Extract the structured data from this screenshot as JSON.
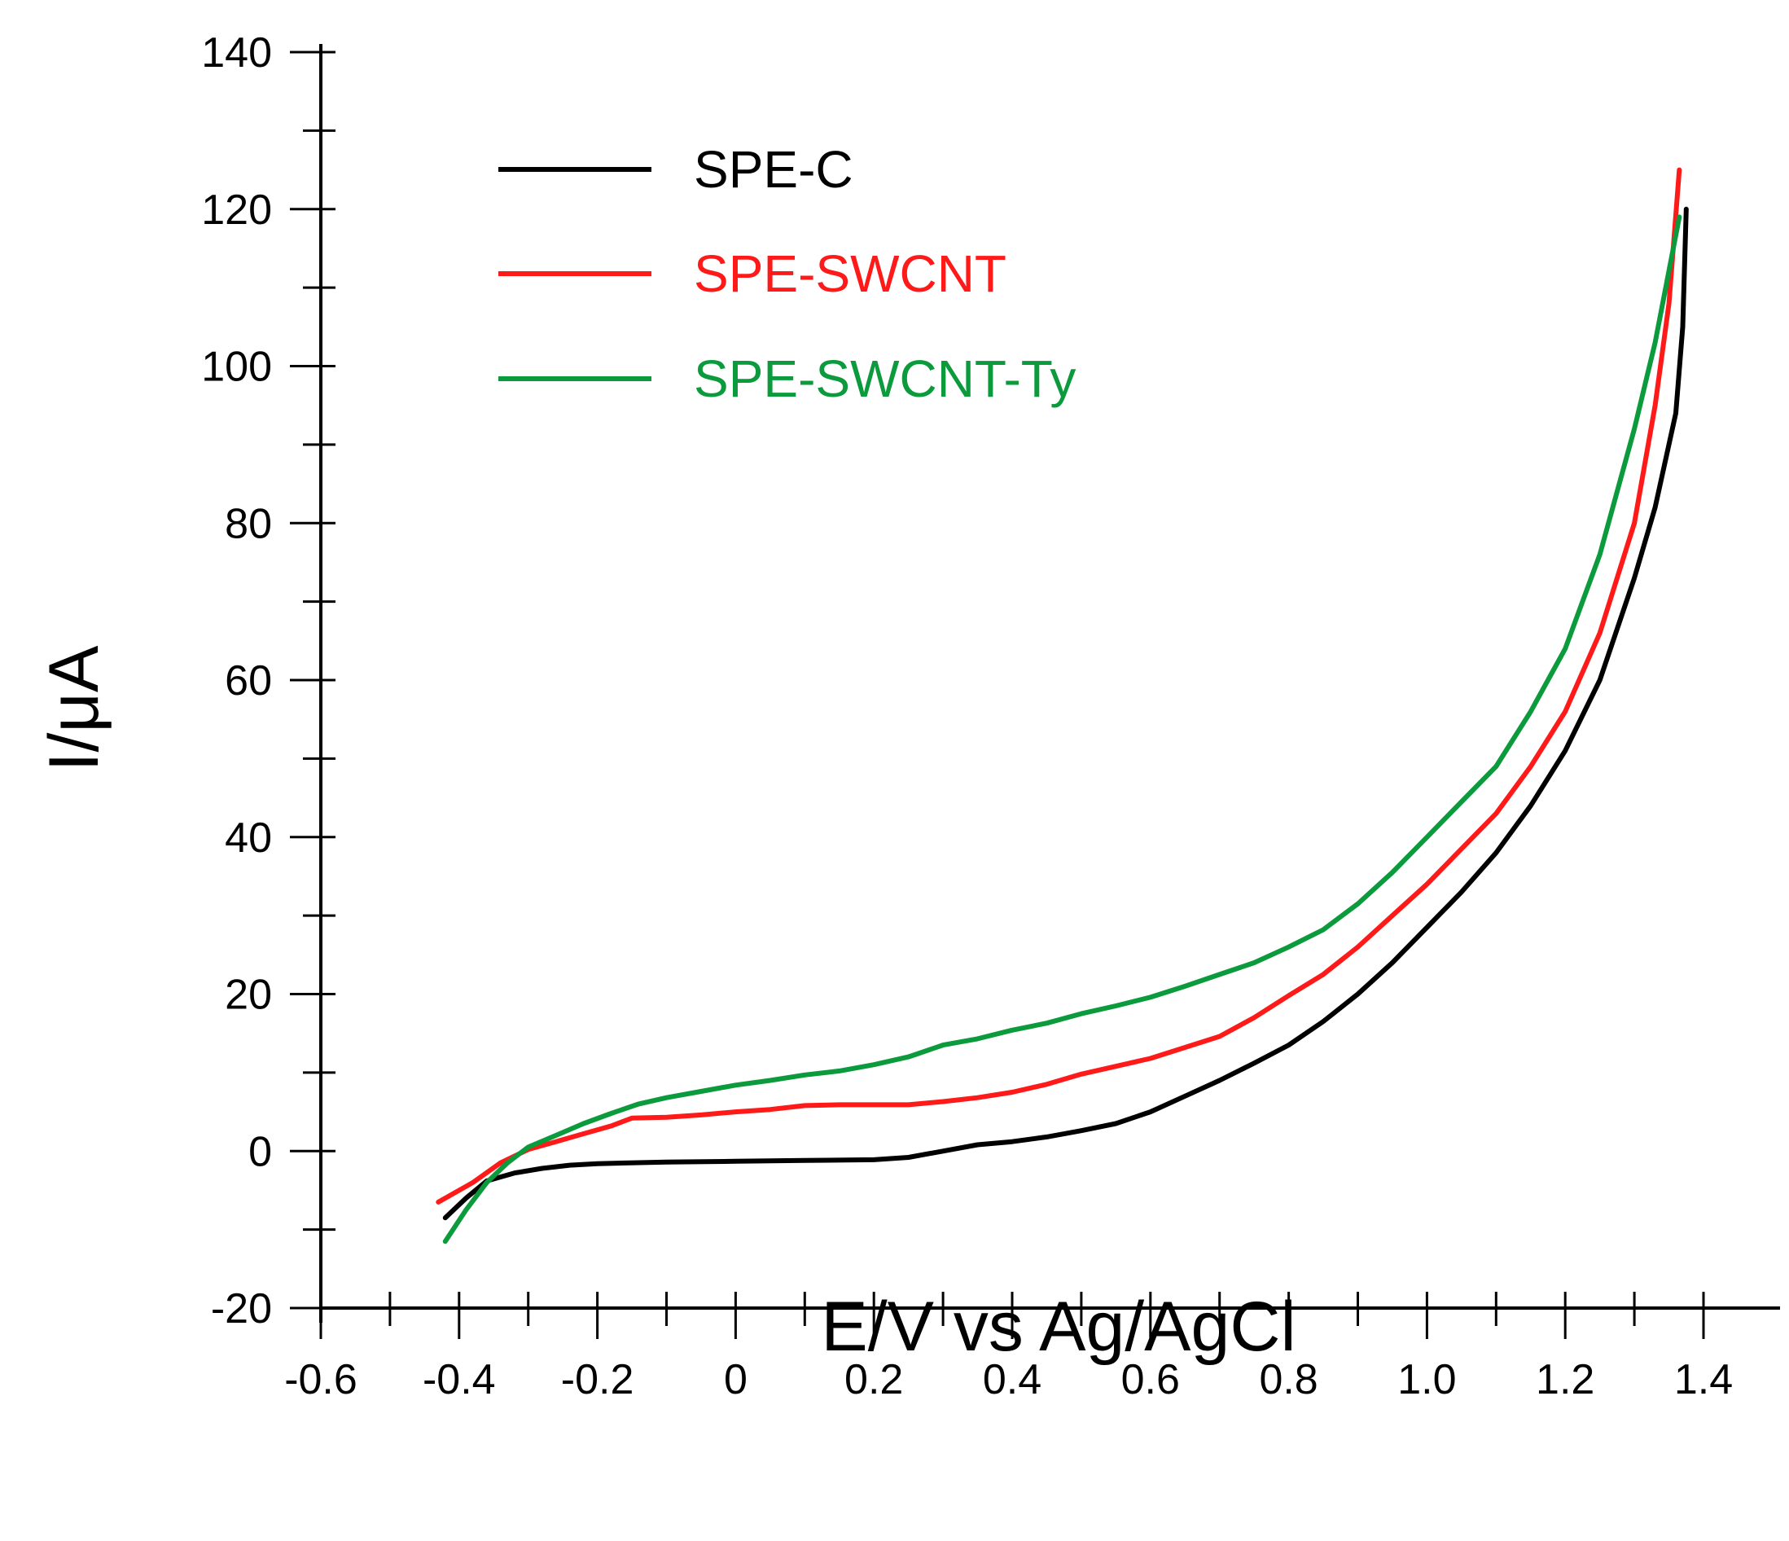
{
  "chart_data": {
    "type": "line",
    "title": "",
    "xlabel": "E/V vs Ag/AgCl",
    "ylabel": "I/μA",
    "xlim": [
      -0.6,
      1.4
    ],
    "ylim": [
      -20,
      140
    ],
    "x_ticks": [
      -0.6,
      -0.4,
      -0.2,
      0,
      0.2,
      0.4,
      0.6,
      0.8,
      1.0,
      1.2,
      1.4
    ],
    "x_tick_labels": [
      "-0.6",
      "-0.4",
      "-0.2",
      "0",
      "0.2",
      "0.4",
      "0.6",
      "0.8",
      "1.0",
      "1.2",
      "1.4"
    ],
    "y_ticks": [
      -20,
      0,
      20,
      40,
      60,
      80,
      100,
      120,
      140
    ],
    "y_tick_labels": [
      "-20",
      "0",
      "20",
      "40",
      "60",
      "80",
      "100",
      "120",
      "140"
    ],
    "x_minor_step": 0.1,
    "y_minor_step": 10,
    "grid": false,
    "legend_position": "top-left",
    "series": [
      {
        "name": "SPE-C",
        "color": "#000000",
        "points": [
          [
            -0.42,
            -8.5
          ],
          [
            -0.39,
            -6
          ],
          [
            -0.36,
            -3.8
          ],
          [
            -0.32,
            -2.8
          ],
          [
            -0.28,
            -2.2
          ],
          [
            -0.24,
            -1.8
          ],
          [
            -0.2,
            -1.6
          ],
          [
            -0.1,
            -1.4
          ],
          [
            0.0,
            -1.3
          ],
          [
            0.1,
            -1.2
          ],
          [
            0.2,
            -1.1
          ],
          [
            0.25,
            -0.8
          ],
          [
            0.3,
            0.0
          ],
          [
            0.35,
            0.8
          ],
          [
            0.4,
            1.2
          ],
          [
            0.45,
            1.8
          ],
          [
            0.5,
            2.6
          ],
          [
            0.55,
            3.5
          ],
          [
            0.6,
            5.0
          ],
          [
            0.65,
            7.0
          ],
          [
            0.7,
            9.0
          ],
          [
            0.75,
            11.2
          ],
          [
            0.8,
            13.5
          ],
          [
            0.85,
            16.5
          ],
          [
            0.9,
            20.0
          ],
          [
            0.95,
            24.0
          ],
          [
            1.0,
            28.5
          ],
          [
            1.05,
            33.0
          ],
          [
            1.1,
            38.0
          ],
          [
            1.15,
            44.0
          ],
          [
            1.2,
            51.0
          ],
          [
            1.25,
            60.0
          ],
          [
            1.3,
            73.0
          ],
          [
            1.33,
            82.0
          ],
          [
            1.36,
            94.0
          ],
          [
            1.37,
            105.0
          ],
          [
            1.375,
            120.0
          ]
        ]
      },
      {
        "name": "SPE-SWCNT",
        "color": "#ff1a1a",
        "points": [
          [
            -0.43,
            -6.5
          ],
          [
            -0.38,
            -4.0
          ],
          [
            -0.34,
            -1.5
          ],
          [
            -0.3,
            0.2
          ],
          [
            -0.26,
            1.2
          ],
          [
            -0.22,
            2.2
          ],
          [
            -0.18,
            3.2
          ],
          [
            -0.15,
            4.2
          ],
          [
            -0.1,
            4.3
          ],
          [
            -0.05,
            4.6
          ],
          [
            0.0,
            5.0
          ],
          [
            0.05,
            5.3
          ],
          [
            0.1,
            5.8
          ],
          [
            0.15,
            5.9
          ],
          [
            0.2,
            5.9
          ],
          [
            0.25,
            5.9
          ],
          [
            0.3,
            6.3
          ],
          [
            0.35,
            6.8
          ],
          [
            0.4,
            7.5
          ],
          [
            0.45,
            8.5
          ],
          [
            0.5,
            9.8
          ],
          [
            0.55,
            10.8
          ],
          [
            0.6,
            11.8
          ],
          [
            0.65,
            13.2
          ],
          [
            0.7,
            14.6
          ],
          [
            0.75,
            17.0
          ],
          [
            0.8,
            19.8
          ],
          [
            0.85,
            22.5
          ],
          [
            0.9,
            26.0
          ],
          [
            0.95,
            30.0
          ],
          [
            1.0,
            34.0
          ],
          [
            1.05,
            38.5
          ],
          [
            1.1,
            43.0
          ],
          [
            1.15,
            49.0
          ],
          [
            1.2,
            56.0
          ],
          [
            1.25,
            66.0
          ],
          [
            1.3,
            80.0
          ],
          [
            1.33,
            95.0
          ],
          [
            1.35,
            108.0
          ],
          [
            1.365,
            125.0
          ]
        ]
      },
      {
        "name": "SPE-SWCNT-Ty",
        "color": "#0b9a3c",
        "points": [
          [
            -0.42,
            -11.5
          ],
          [
            -0.39,
            -7.5
          ],
          [
            -0.36,
            -4.0
          ],
          [
            -0.33,
            -1.5
          ],
          [
            -0.3,
            0.5
          ],
          [
            -0.26,
            2.0
          ],
          [
            -0.22,
            3.5
          ],
          [
            -0.18,
            4.8
          ],
          [
            -0.14,
            6.0
          ],
          [
            -0.1,
            6.8
          ],
          [
            -0.05,
            7.6
          ],
          [
            0.0,
            8.4
          ],
          [
            0.05,
            9.0
          ],
          [
            0.1,
            9.7
          ],
          [
            0.15,
            10.2
          ],
          [
            0.2,
            11.0
          ],
          [
            0.25,
            12.0
          ],
          [
            0.3,
            13.5
          ],
          [
            0.35,
            14.3
          ],
          [
            0.4,
            15.4
          ],
          [
            0.45,
            16.3
          ],
          [
            0.5,
            17.5
          ],
          [
            0.55,
            18.5
          ],
          [
            0.6,
            19.6
          ],
          [
            0.65,
            21.0
          ],
          [
            0.7,
            22.5
          ],
          [
            0.75,
            24.0
          ],
          [
            0.8,
            26.0
          ],
          [
            0.85,
            28.2
          ],
          [
            0.9,
            31.5
          ],
          [
            0.95,
            35.5
          ],
          [
            1.0,
            40.0
          ],
          [
            1.05,
            44.5
          ],
          [
            1.1,
            49.0
          ],
          [
            1.15,
            56.0
          ],
          [
            1.2,
            64.0
          ],
          [
            1.25,
            76.0
          ],
          [
            1.3,
            92.0
          ],
          [
            1.33,
            103.0
          ],
          [
            1.365,
            119.0
          ]
        ]
      }
    ]
  }
}
